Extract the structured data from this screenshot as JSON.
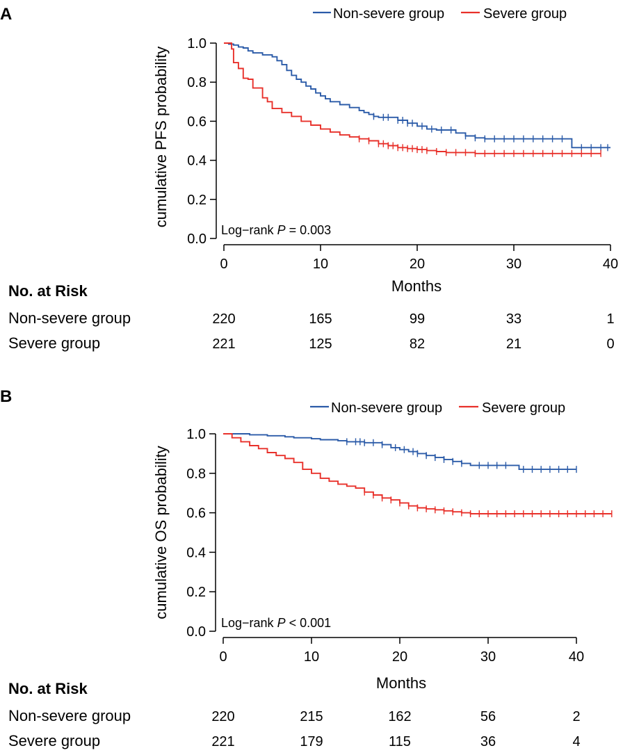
{
  "panels": [
    {
      "letter": "A",
      "legend": [
        "Non-severe group",
        "Severe group"
      ],
      "annotation": {
        "prefix": "Log−rank ",
        "p": "P",
        "suffix": " = 0.003"
      },
      "risk": {
        "title": "No. at Risk",
        "rows": [
          {
            "label": "Non-severe group",
            "values": [
              "220",
              "165",
              "99",
              "33",
              "1"
            ]
          },
          {
            "label": "Severe group",
            "values": [
              "221",
              "125",
              "82",
              "21",
              "0"
            ]
          }
        ]
      }
    },
    {
      "letter": "B",
      "legend": [
        "Non-severe group",
        "Severe group"
      ],
      "annotation": {
        "prefix": "Log−rank ",
        "p": "P",
        "suffix": " < 0.001"
      },
      "risk": {
        "title": "No. at Risk",
        "rows": [
          {
            "label": "Non-severe group",
            "values": [
              "220",
              "215",
              "162",
              "56",
              "2"
            ]
          },
          {
            "label": "Severe group",
            "values": [
              "221",
              "179",
              "115",
              "36",
              "4"
            ]
          }
        ]
      }
    }
  ],
  "chart_data": [
    {
      "type": "line",
      "subtype": "kaplan-meier",
      "title": "",
      "xlabel": "Months",
      "ylabel": "cumulative PFS probability",
      "xlim": [
        0,
        40
      ],
      "ylim": [
        0,
        1
      ],
      "xticks": [
        "0",
        "10",
        "20",
        "30",
        "40"
      ],
      "yticks": [
        "0.0",
        "0.2",
        "0.4",
        "0.6",
        "0.8",
        "1.0"
      ],
      "legend_position": "top-right",
      "series": [
        {
          "name": "Non-severe group",
          "color": "#2b5ba8",
          "steps": [
            [
              0,
              1.0
            ],
            [
              0.5,
              0.995
            ],
            [
              1,
              0.99
            ],
            [
              1.5,
              0.98
            ],
            [
              2,
              0.975
            ],
            [
              2.5,
              0.96
            ],
            [
              3,
              0.95
            ],
            [
              4,
              0.94
            ],
            [
              5,
              0.93
            ],
            [
              5.5,
              0.91
            ],
            [
              6,
              0.89
            ],
            [
              6.5,
              0.86
            ],
            [
              7,
              0.835
            ],
            [
              7.5,
              0.815
            ],
            [
              8,
              0.8
            ],
            [
              8.5,
              0.78
            ],
            [
              9,
              0.765
            ],
            [
              9.5,
              0.745
            ],
            [
              10,
              0.73
            ],
            [
              10.5,
              0.715
            ],
            [
              11,
              0.7
            ],
            [
              12,
              0.685
            ],
            [
              13,
              0.67
            ],
            [
              14,
              0.655
            ],
            [
              14.5,
              0.645
            ],
            [
              15,
              0.635
            ],
            [
              15.5,
              0.625
            ],
            [
              16,
              0.62
            ],
            [
              18,
              0.605
            ],
            [
              19,
              0.59
            ],
            [
              20,
              0.575
            ],
            [
              21,
              0.56
            ],
            [
              22,
              0.555
            ],
            [
              24,
              0.54
            ],
            [
              25,
              0.525
            ],
            [
              26,
              0.515
            ],
            [
              27,
              0.51
            ],
            [
              35,
              0.51
            ],
            [
              36,
              0.465
            ],
            [
              40,
              0.465
            ]
          ],
          "censor_times": [
            15.5,
            16.5,
            17,
            18,
            18.5,
            19,
            19.5,
            20.5,
            21.5,
            22.5,
            23.5,
            25,
            26,
            27,
            28,
            29,
            30,
            31,
            32,
            33,
            34,
            35,
            37,
            38,
            39,
            40
          ]
        },
        {
          "name": "Severe group",
          "color": "#e8302a",
          "steps": [
            [
              0,
              1.0
            ],
            [
              0.8,
              0.97
            ],
            [
              1,
              0.9
            ],
            [
              1.5,
              0.87
            ],
            [
              2,
              0.82
            ],
            [
              2.5,
              0.815
            ],
            [
              3,
              0.77
            ],
            [
              4,
              0.72
            ],
            [
              4.5,
              0.7
            ],
            [
              5,
              0.665
            ],
            [
              6,
              0.645
            ],
            [
              7,
              0.625
            ],
            [
              8,
              0.6
            ],
            [
              9,
              0.58
            ],
            [
              10,
              0.56
            ],
            [
              11,
              0.545
            ],
            [
              12,
              0.53
            ],
            [
              13,
              0.52
            ],
            [
              14,
              0.51
            ],
            [
              15,
              0.5
            ],
            [
              16,
              0.485
            ],
            [
              17,
              0.475
            ],
            [
              18,
              0.465
            ],
            [
              19,
              0.46
            ],
            [
              20,
              0.455
            ],
            [
              21,
              0.45
            ],
            [
              22,
              0.445
            ],
            [
              23,
              0.44
            ],
            [
              26,
              0.435
            ],
            [
              39,
              0.435
            ]
          ],
          "censor_times": [
            14,
            15,
            16,
            16.5,
            17,
            17.5,
            18,
            18.5,
            19,
            19.5,
            20,
            20.5,
            21,
            22,
            23,
            24,
            25,
            26,
            27,
            28,
            29,
            30,
            31,
            32,
            33,
            34,
            35,
            36,
            37,
            38,
            39
          ]
        }
      ]
    },
    {
      "type": "line",
      "subtype": "kaplan-meier",
      "title": "",
      "xlabel": "Months",
      "ylabel": "cumulative OS probability",
      "xlim": [
        0,
        40
      ],
      "ylim": [
        0,
        1
      ],
      "xticks": [
        "0",
        "10",
        "20",
        "30",
        "40"
      ],
      "yticks": [
        "0.0",
        "0.2",
        "0.4",
        "0.6",
        "0.8",
        "1.0"
      ],
      "legend_position": "top-right",
      "series": [
        {
          "name": "Non-severe group",
          "color": "#2b5ba8",
          "steps": [
            [
              0,
              1.0
            ],
            [
              3,
              0.995
            ],
            [
              5,
              0.99
            ],
            [
              7,
              0.985
            ],
            [
              8,
              0.98
            ],
            [
              10,
              0.975
            ],
            [
              11,
              0.97
            ],
            [
              13,
              0.965
            ],
            [
              14,
              0.96
            ],
            [
              16,
              0.955
            ],
            [
              18,
              0.945
            ],
            [
              19,
              0.93
            ],
            [
              20,
              0.92
            ],
            [
              21,
              0.91
            ],
            [
              22,
              0.9
            ],
            [
              23,
              0.89
            ],
            [
              24,
              0.88
            ],
            [
              25,
              0.87
            ],
            [
              26,
              0.86
            ],
            [
              27,
              0.85
            ],
            [
              28,
              0.84
            ],
            [
              33,
              0.84
            ],
            [
              33.5,
              0.82
            ],
            [
              40,
              0.82
            ]
          ],
          "censor_times": [
            14,
            15,
            15.5,
            16,
            17,
            18,
            19.5,
            20.5,
            21.5,
            22,
            23,
            24,
            25,
            26,
            27,
            29,
            30,
            31,
            32,
            34,
            35,
            36,
            37,
            38,
            39,
            40
          ]
        },
        {
          "name": "Severe group",
          "color": "#e8302a",
          "steps": [
            [
              0,
              1.0
            ],
            [
              1,
              0.98
            ],
            [
              2,
              0.96
            ],
            [
              3,
              0.94
            ],
            [
              4,
              0.925
            ],
            [
              5,
              0.905
            ],
            [
              6,
              0.89
            ],
            [
              7,
              0.875
            ],
            [
              8,
              0.855
            ],
            [
              9,
              0.82
            ],
            [
              10,
              0.8
            ],
            [
              11,
              0.775
            ],
            [
              12,
              0.76
            ],
            [
              13,
              0.745
            ],
            [
              14,
              0.735
            ],
            [
              15,
              0.725
            ],
            [
              16,
              0.705
            ],
            [
              17,
              0.69
            ],
            [
              18,
              0.675
            ],
            [
              19,
              0.665
            ],
            [
              20,
              0.65
            ],
            [
              21,
              0.635
            ],
            [
              22,
              0.625
            ],
            [
              23,
              0.62
            ],
            [
              24,
              0.615
            ],
            [
              25,
              0.61
            ],
            [
              26,
              0.605
            ],
            [
              27,
              0.6
            ],
            [
              28,
              0.595
            ],
            [
              44,
              0.595
            ]
          ],
          "censor_times": [
            16,
            17,
            18,
            19,
            20,
            21,
            22,
            23,
            24,
            25,
            26,
            27,
            28,
            29,
            30,
            31,
            32,
            33,
            34,
            35,
            36,
            37,
            38,
            39,
            40,
            41,
            42,
            43,
            44
          ]
        }
      ]
    }
  ]
}
